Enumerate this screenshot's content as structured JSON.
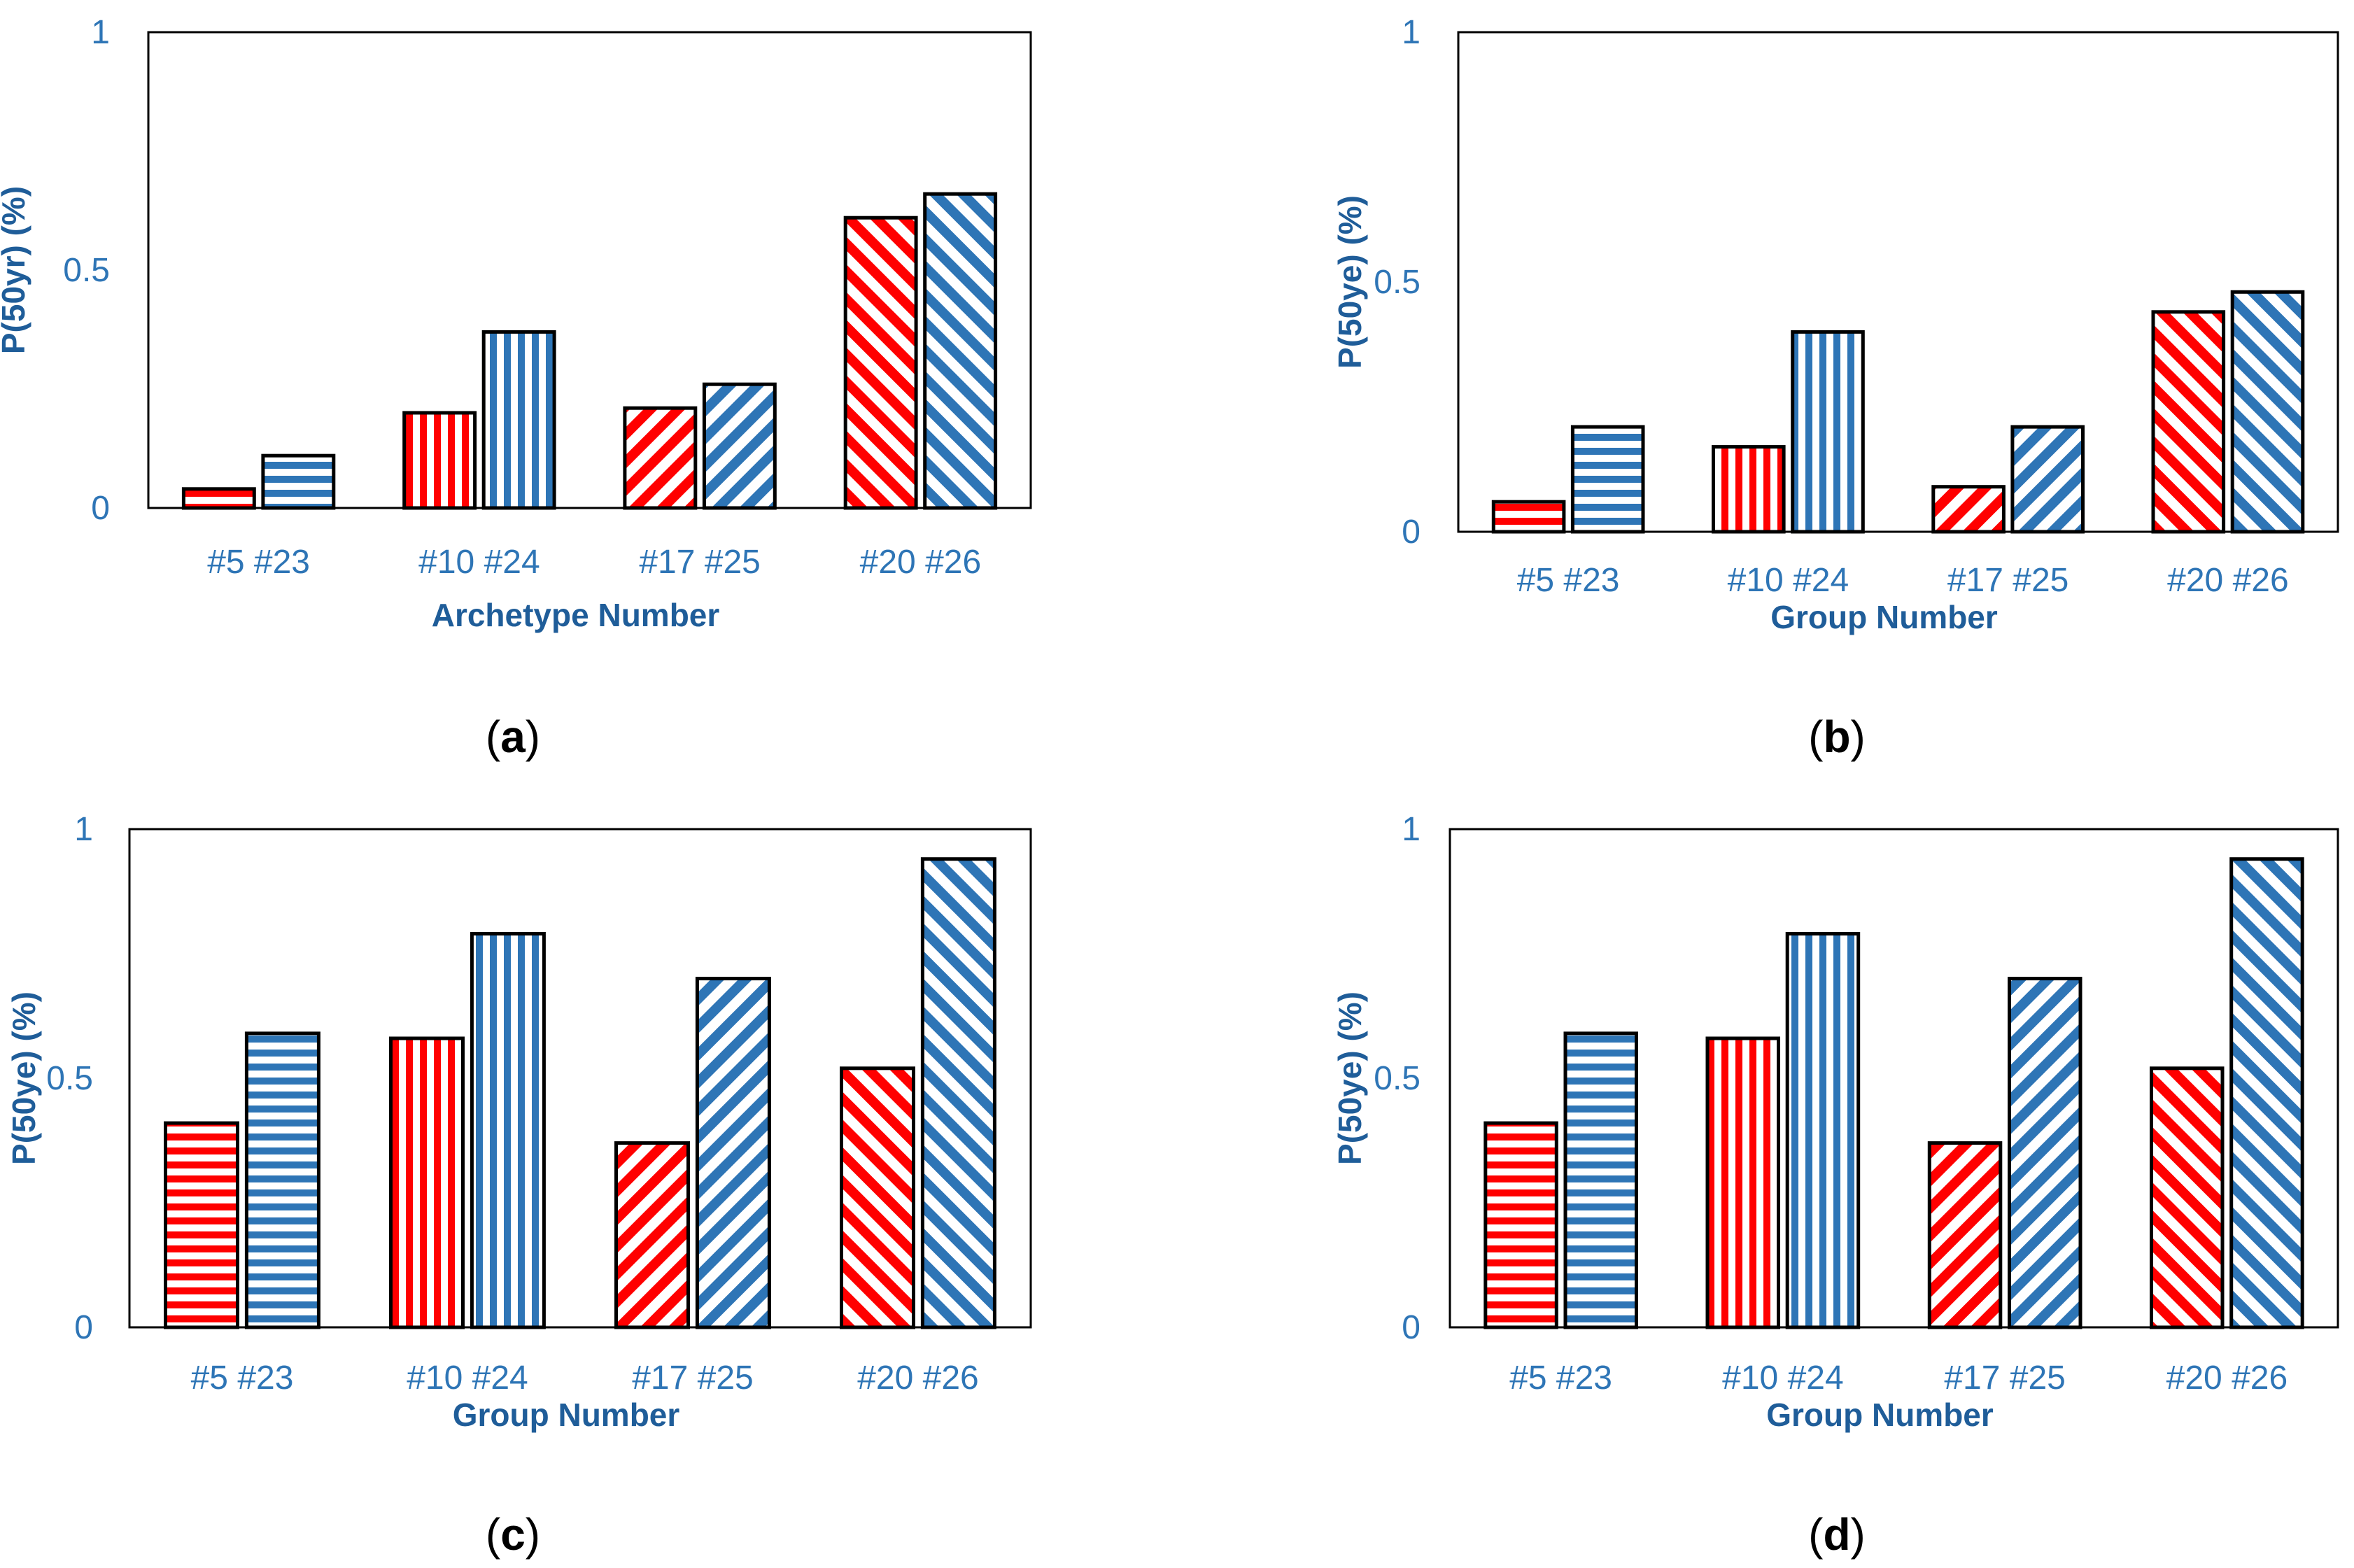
{
  "colors": {
    "red": "#ff0000",
    "blue": "#2e75b6",
    "tick_text": "#2e75b6",
    "axis_title": "#1f5d99",
    "frame": "#000000"
  },
  "chart_data": [
    {
      "id": "a",
      "type": "bar",
      "caption": "a",
      "xlabel": "Archetype Number",
      "ylabel": "P(50yr) (%)",
      "ylim": [
        0,
        1
      ],
      "yticks": [
        "0",
        "0.5",
        "1"
      ],
      "categories": [
        "#5 #23",
        "#10 #24",
        "#17 #25",
        "#20 #26"
      ],
      "series": [
        {
          "name": "red",
          "values": [
            0.04,
            0.2,
            0.21,
            0.61
          ]
        },
        {
          "name": "blue",
          "values": [
            0.11,
            0.37,
            0.26,
            0.66
          ]
        }
      ],
      "patterns": [
        "horizontal",
        "vertical",
        "diagonal-up",
        "diagonal-down"
      ]
    },
    {
      "id": "b",
      "type": "bar",
      "caption": "b",
      "xlabel": "Group Number",
      "ylabel": "P(50ye) (%)",
      "ylim": [
        0,
        1
      ],
      "yticks": [
        "0",
        "0.5",
        "1"
      ],
      "categories": [
        "#5 #23",
        "#10 #24",
        "#17 #25",
        "#20 #26"
      ],
      "series": [
        {
          "name": "red",
          "values": [
            0.06,
            0.17,
            0.09,
            0.44
          ]
        },
        {
          "name": "blue",
          "values": [
            0.21,
            0.4,
            0.21,
            0.48
          ]
        }
      ],
      "patterns": [
        "horizontal",
        "vertical",
        "diagonal-up",
        "diagonal-down"
      ]
    },
    {
      "id": "c",
      "type": "bar",
      "caption": "c",
      "xlabel": "Group Number",
      "ylabel": "P(50ye) (%)",
      "ylim": [
        0,
        1
      ],
      "yticks": [
        "0",
        "0.5",
        "1"
      ],
      "categories": [
        "#5 #23",
        "#10 #24",
        "#17 #25",
        "#20 #26"
      ],
      "series": [
        {
          "name": "red",
          "values": [
            0.41,
            0.58,
            0.37,
            0.52
          ]
        },
        {
          "name": "blue",
          "values": [
            0.59,
            0.79,
            0.7,
            0.94
          ]
        }
      ],
      "patterns": [
        "horizontal",
        "vertical",
        "diagonal-up",
        "diagonal-down"
      ]
    },
    {
      "id": "d",
      "type": "bar",
      "caption": "d",
      "xlabel": "Group Number",
      "ylabel": "P(50ye) (%)",
      "ylim": [
        0,
        1
      ],
      "yticks": [
        "0",
        "0.5",
        "1"
      ],
      "categories": [
        "#5 #23",
        "#10 #24",
        "#17 #25",
        "#20 #26"
      ],
      "series": [
        {
          "name": "red",
          "values": [
            0.41,
            0.58,
            0.37,
            0.52
          ]
        },
        {
          "name": "blue",
          "values": [
            0.59,
            0.79,
            0.7,
            0.94
          ]
        }
      ],
      "patterns": [
        "horizontal",
        "vertical",
        "diagonal-up",
        "diagonal-down"
      ]
    }
  ]
}
